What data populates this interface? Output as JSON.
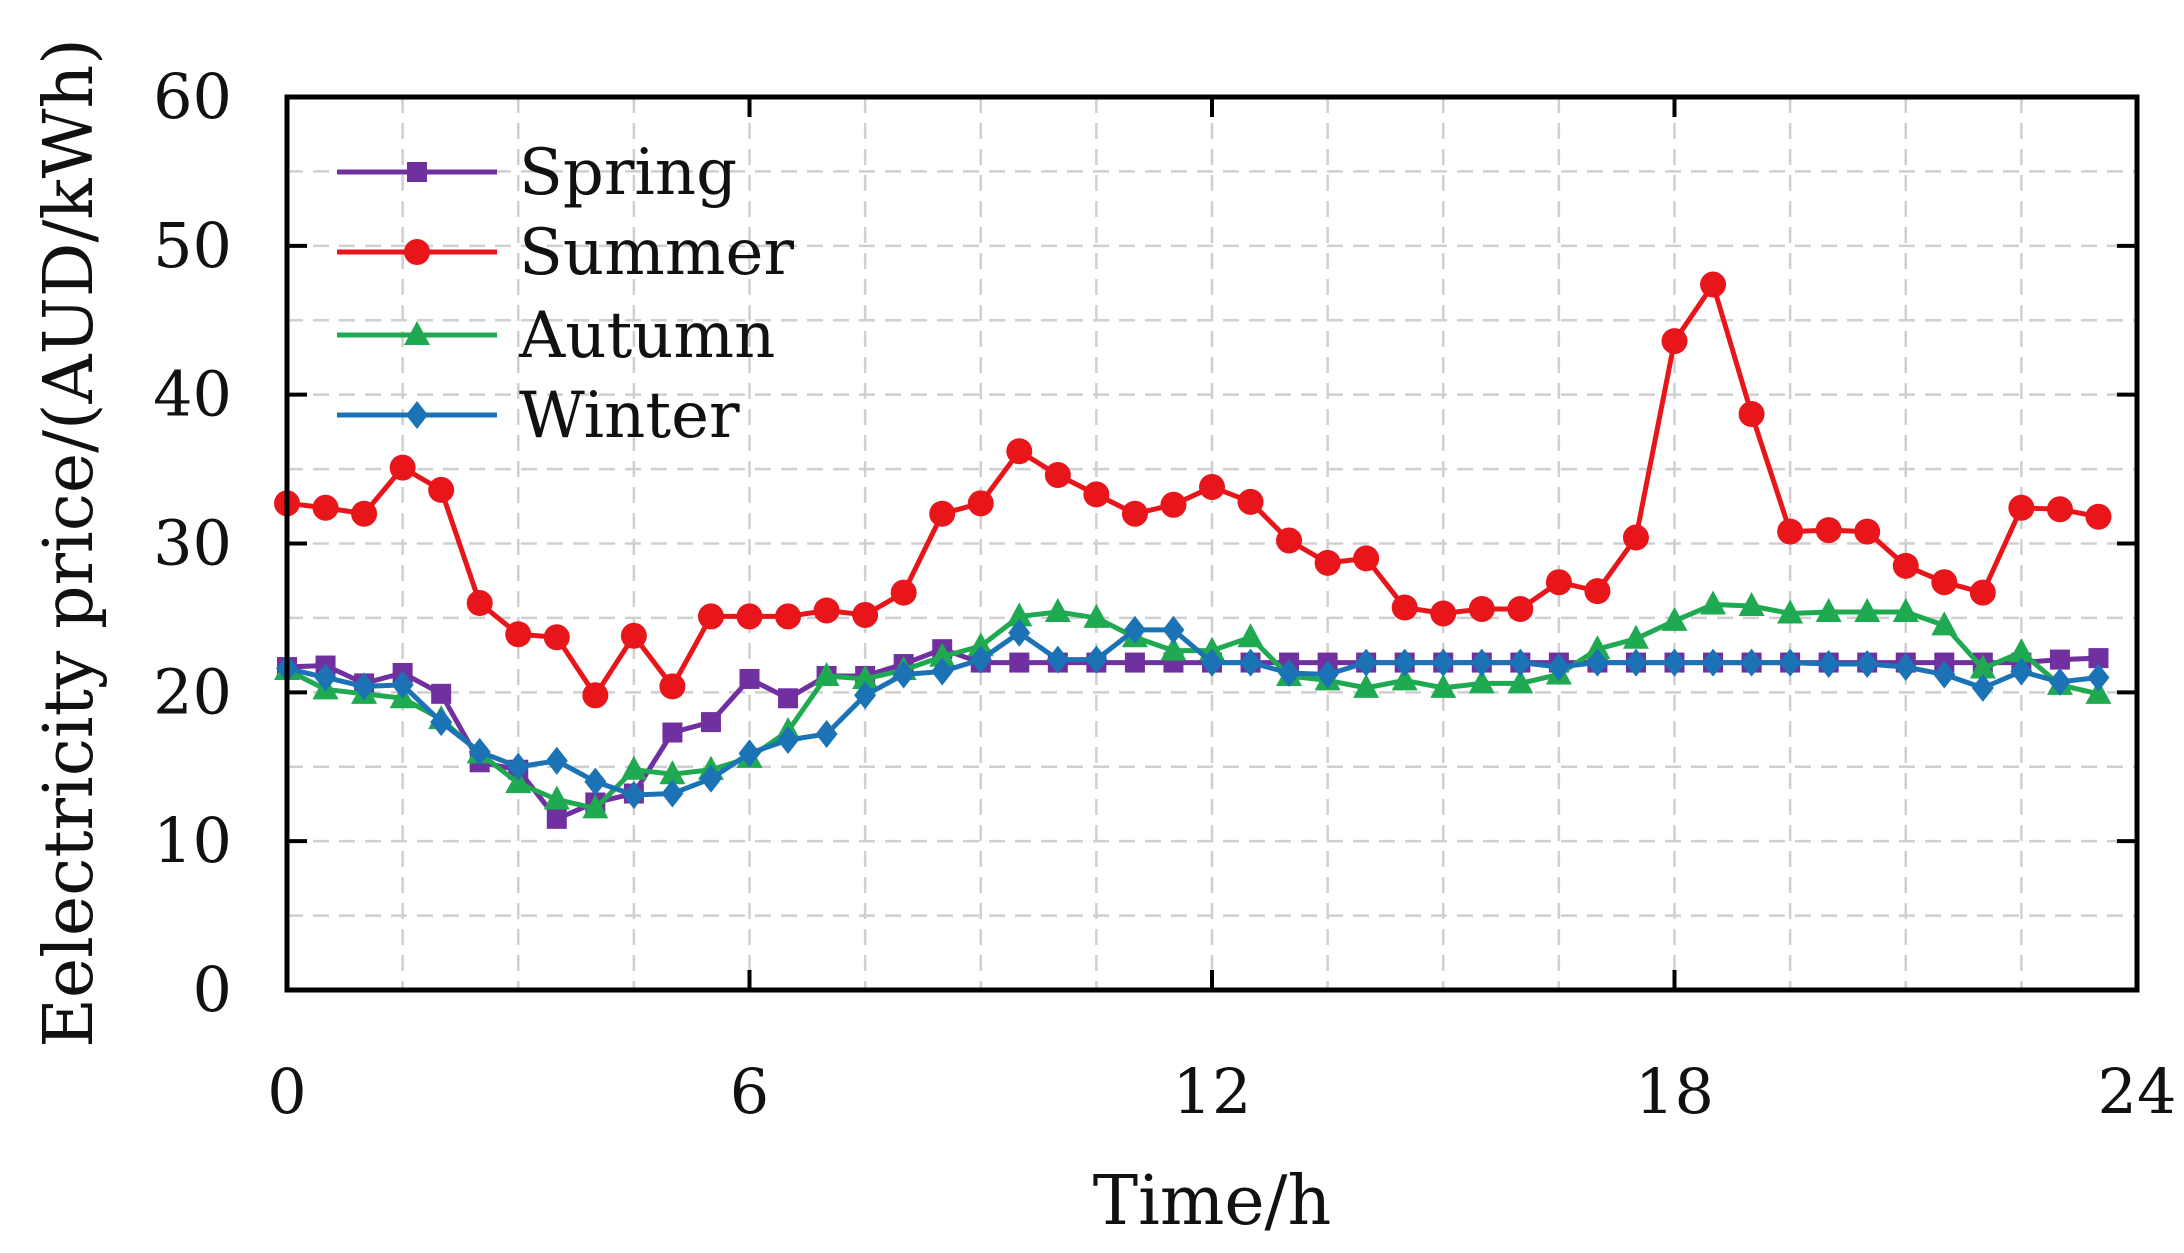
{
  "chart_data": {
    "type": "line",
    "title": "",
    "xlabel": "Time/h",
    "ylabel": "Eelectricity price/(AUD/kWh)",
    "xlim": [
      0,
      24
    ],
    "ylim": [
      0,
      60
    ],
    "x_ticks": [
      "0",
      "6",
      "12",
      "18",
      "24"
    ],
    "y_ticks": [
      "0",
      "10",
      "20",
      "30",
      "40",
      "50",
      "60"
    ],
    "grid": true,
    "legend_position": "top-left",
    "x": [
      0,
      0.5,
      1,
      1.5,
      2,
      2.5,
      3,
      3.5,
      4,
      4.5,
      5,
      5.5,
      6,
      6.5,
      7,
      7.5,
      8,
      8.5,
      9,
      9.5,
      10,
      10.5,
      11,
      11.5,
      12,
      12.5,
      13,
      13.5,
      14,
      14.5,
      15,
      15.5,
      16,
      16.5,
      17,
      17.5,
      18,
      18.5,
      19,
      19.5,
      20,
      20.5,
      21,
      21.5,
      22,
      22.5,
      23,
      23.5
    ],
    "series": [
      {
        "name": "Spring",
        "color": "#7030A0",
        "marker": "square",
        "values": [
          21.7,
          21.8,
          20.6,
          21.3,
          19.9,
          15.3,
          14.8,
          11.5,
          12.6,
          13.2,
          17.3,
          18.0,
          20.9,
          19.6,
          21.1,
          21.1,
          21.9,
          22.9,
          22.0,
          22.0,
          22.0,
          22.0,
          22.0,
          22.0,
          22.0,
          22.0,
          22.0,
          22.0,
          22.0,
          22.0,
          22.0,
          22.0,
          22.0,
          22.0,
          22.0,
          22.0,
          22.0,
          22.0,
          22.0,
          22.0,
          22.0,
          22.0,
          22.0,
          22.0,
          22.0,
          22.0,
          22.2,
          22.3
        ]
      },
      {
        "name": "Summer",
        "color": "#E8161B",
        "marker": "circle",
        "values": [
          32.7,
          32.4,
          32.0,
          35.1,
          33.6,
          26.0,
          23.9,
          23.7,
          19.8,
          23.8,
          20.4,
          25.1,
          25.1,
          25.1,
          25.5,
          25.2,
          26.7,
          32.0,
          32.7,
          36.2,
          34.6,
          33.3,
          32.0,
          32.6,
          33.8,
          32.8,
          30.2,
          28.7,
          29.0,
          25.7,
          25.3,
          25.6,
          25.6,
          27.4,
          26.8,
          30.4,
          43.6,
          47.4,
          38.7,
          30.8,
          30.9,
          30.8,
          28.5,
          27.4,
          26.7,
          32.4,
          32.3,
          31.8
        ]
      },
      {
        "name": "Autumn",
        "color": "#1FAA52",
        "marker": "triangle",
        "values": [
          21.5,
          20.2,
          19.9,
          19.6,
          18.2,
          15.9,
          13.9,
          12.8,
          12.2,
          14.8,
          14.5,
          14.8,
          15.6,
          17.4,
          21.1,
          20.9,
          21.5,
          22.4,
          23.1,
          25.1,
          25.4,
          25.0,
          23.7,
          22.8,
          22.8,
          23.7,
          21.1,
          20.8,
          20.3,
          20.8,
          20.3,
          20.6,
          20.6,
          21.2,
          22.9,
          23.6,
          24.8,
          25.9,
          25.8,
          25.3,
          25.4,
          25.4,
          25.4,
          24.5,
          21.6,
          22.7,
          20.5,
          19.9
        ]
      },
      {
        "name": "Winter",
        "color": "#1B72B5",
        "marker": "diamond",
        "values": [
          21.6,
          21.0,
          20.4,
          20.5,
          18.0,
          16.0,
          15.0,
          15.4,
          14.0,
          13.1,
          13.2,
          14.2,
          15.9,
          16.8,
          17.2,
          19.8,
          21.2,
          21.4,
          22.2,
          24.0,
          22.2,
          22.2,
          24.2,
          24.2,
          22.0,
          22.0,
          21.3,
          21.2,
          22.0,
          22.0,
          22.0,
          22.0,
          22.0,
          21.7,
          22.0,
          22.0,
          22.0,
          22.0,
          22.0,
          22.0,
          21.9,
          21.9,
          21.7,
          21.2,
          20.3,
          21.4,
          20.7,
          21.0
        ]
      }
    ]
  }
}
